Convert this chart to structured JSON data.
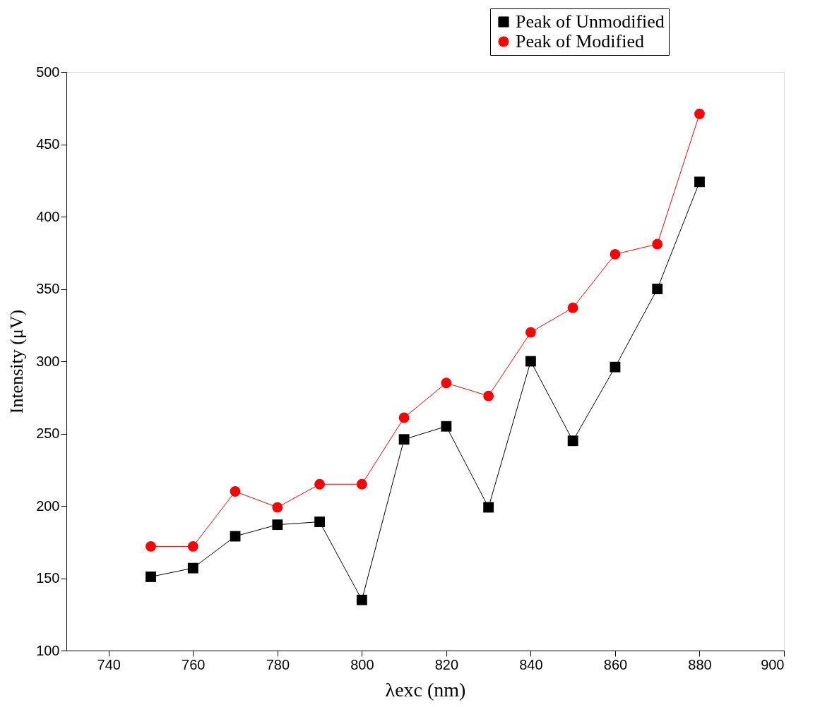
{
  "chart_data": {
    "type": "line",
    "xlabel": "λexc (nm)",
    "ylabel": "Intensity (μV)",
    "x": [
      750,
      760,
      770,
      780,
      790,
      800,
      810,
      820,
      830,
      840,
      850,
      860,
      870,
      880
    ],
    "series": [
      {
        "name": "Peak of Unmodified",
        "color": "#000000",
        "marker": "square",
        "values": [
          151,
          157,
          179,
          187,
          189,
          135,
          246,
          255,
          199,
          300,
          245,
          296,
          350,
          424
        ]
      },
      {
        "name": "Peak of Modified",
        "color": "#ff0000",
        "marker": "circle",
        "values": [
          172,
          172,
          210,
          199,
          215,
          215,
          261,
          285,
          276,
          320,
          337,
          374,
          381,
          471
        ]
      }
    ],
    "xlim": [
      730,
      900
    ],
    "xticks": [
      740,
      760,
      780,
      800,
      820,
      840,
      860,
      880,
      900
    ],
    "ylim": [
      100,
      500
    ],
    "yticks": [
      100,
      150,
      200,
      250,
      300,
      350,
      400,
      450,
      500
    ],
    "grid": false,
    "legend": "top right",
    "line_style": "solid"
  }
}
